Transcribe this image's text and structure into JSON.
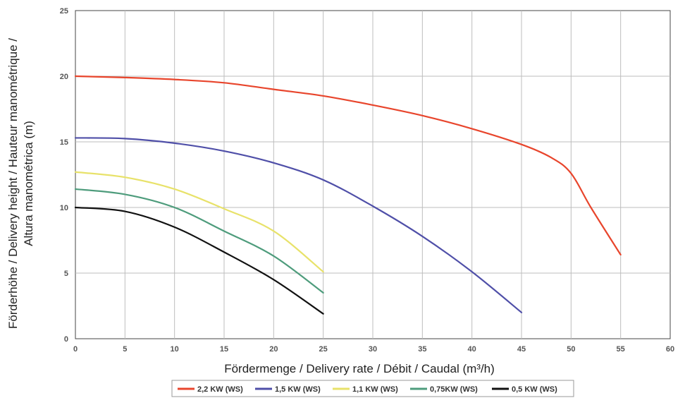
{
  "chart_data": {
    "type": "line",
    "xlabel": "Fördermenge / Delivery rate / Débit / Caudal (m³/h)",
    "ylabel_lines": [
      "Förderhöhe / Delivery height / Hauteur manométrique /",
      "Altura manométrica (m)"
    ],
    "xlim": [
      0,
      60
    ],
    "ylim": [
      0,
      25
    ],
    "xticks": [
      0,
      5,
      10,
      15,
      20,
      25,
      30,
      35,
      40,
      45,
      50,
      55,
      60
    ],
    "yticks": [
      0,
      5,
      10,
      15,
      20,
      25
    ],
    "grid": true,
    "legend_position": "bottom-center",
    "series": [
      {
        "name": "2,2 KW (WS)",
        "color": "#e8452c",
        "x": [
          0,
          5,
          10,
          15,
          20,
          25,
          30,
          35,
          40,
          45,
          48,
          50,
          52,
          55
        ],
        "y": [
          20.0,
          19.9,
          19.75,
          19.5,
          19.0,
          18.5,
          17.8,
          17.0,
          16.0,
          14.8,
          13.8,
          12.6,
          10.0,
          6.4
        ]
      },
      {
        "name": "1,5 KW (WS)",
        "color": "#4f4fa8",
        "x": [
          0,
          5,
          10,
          15,
          20,
          25,
          30,
          35,
          40,
          45
        ],
        "y": [
          15.3,
          15.25,
          14.9,
          14.3,
          13.4,
          12.1,
          10.1,
          7.8,
          5.1,
          2.0
        ]
      },
      {
        "name": "1,1 KW (WS)",
        "color": "#e8e26a",
        "x": [
          0,
          5,
          10,
          15,
          20,
          25
        ],
        "y": [
          12.7,
          12.3,
          11.4,
          9.9,
          8.2,
          5.1
        ]
      },
      {
        "name": "0,75KW (WS)",
        "color": "#4e9c7c",
        "x": [
          0,
          5,
          10,
          15,
          20,
          25
        ],
        "y": [
          11.4,
          11.0,
          10.0,
          8.2,
          6.3,
          3.5
        ]
      },
      {
        "name": "0,5 KW (WS)",
        "color": "#111111",
        "x": [
          0,
          5,
          10,
          15,
          20,
          25
        ],
        "y": [
          10.0,
          9.7,
          8.5,
          6.6,
          4.5,
          1.9
        ]
      }
    ]
  }
}
